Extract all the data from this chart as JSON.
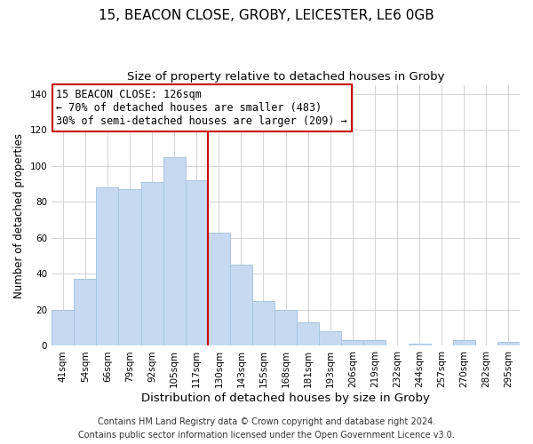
{
  "title": "15, BEACON CLOSE, GROBY, LEICESTER, LE6 0GB",
  "subtitle": "Size of property relative to detached houses in Groby",
  "xlabel": "Distribution of detached houses by size in Groby",
  "ylabel": "Number of detached properties",
  "bar_labels": [
    "41sqm",
    "54sqm",
    "66sqm",
    "79sqm",
    "92sqm",
    "105sqm",
    "117sqm",
    "130sqm",
    "143sqm",
    "155sqm",
    "168sqm",
    "181sqm",
    "193sqm",
    "206sqm",
    "219sqm",
    "232sqm",
    "244sqm",
    "257sqm",
    "270sqm",
    "282sqm",
    "295sqm"
  ],
  "bar_values": [
    20,
    37,
    88,
    87,
    91,
    105,
    92,
    63,
    45,
    25,
    20,
    13,
    8,
    3,
    3,
    0,
    1,
    0,
    3,
    0,
    2
  ],
  "bar_color": "#c6d9f0",
  "bar_edge_color": "#a8c4e0",
  "vline_color": "#cc0000",
  "ylim": [
    0,
    145
  ],
  "yticks": [
    0,
    20,
    40,
    60,
    80,
    100,
    120,
    140
  ],
  "annotation_title": "15 BEACON CLOSE: 126sqm",
  "annotation_line1": "← 70% of detached houses are smaller (483)",
  "annotation_line2": "30% of semi-detached houses are larger (209) →",
  "annotation_box_color": "#ffffff",
  "annotation_box_edge": "#cc0000",
  "footer_line1": "Contains HM Land Registry data © Crown copyright and database right 2024.",
  "footer_line2": "Contains public sector information licensed under the Open Government Licence v3.0.",
  "title_fontsize": 11,
  "subtitle_fontsize": 9.5,
  "xlabel_fontsize": 9.5,
  "ylabel_fontsize": 8.5,
  "tick_fontsize": 7.5,
  "annotation_fontsize": 8.5,
  "footer_fontsize": 7
}
